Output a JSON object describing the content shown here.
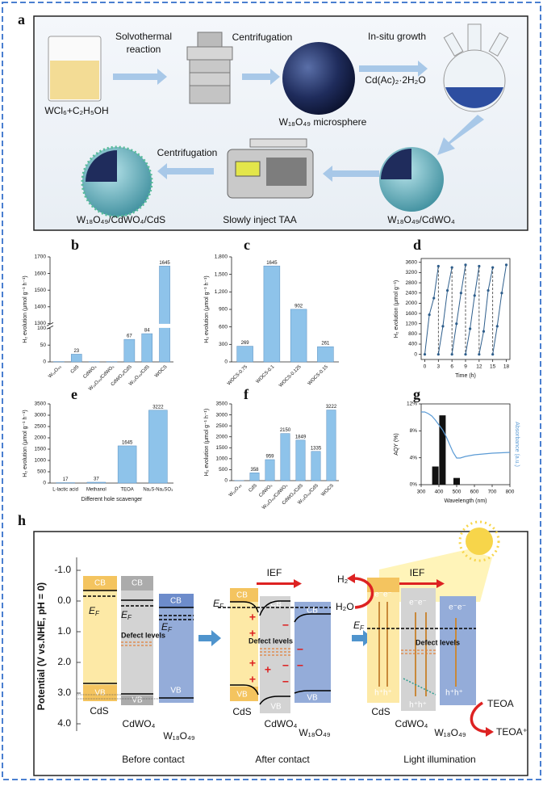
{
  "panel_a": {
    "label": "a",
    "solvothermal": [
      "Solvothermal",
      "reaction"
    ],
    "centrifugation_1": "Centrifugation",
    "in_situ": "In-situ growth",
    "reagent": "Cd(Ac)₂·2H₂O",
    "precursor": "WCl₆+C₂H₅OH",
    "microsphere": "W₁₈O₄₉ microsphere",
    "centrifugation_2": "Centrifugation",
    "product": "W₁₈O₄₉/CdWO₄/CdS",
    "inject": "Slowly inject TAA",
    "intermediate": "W₁₈O₄₉/CdWO₄"
  },
  "chart_data": [
    {
      "panel": "b",
      "type": "bar",
      "ylabel": "H₂ evolution (μmol g⁻¹ h⁻¹)",
      "categories": [
        "W₁₈O₄₉",
        "CdS",
        "CdWO₄",
        "W₁₈O₄₉/CdWO₄",
        "CdWO₄/CdS",
        "W₁₈O₄₉/CdS",
        "WOCS"
      ],
      "values": [
        1,
        23,
        1,
        1,
        67,
        84,
        1645
      ],
      "value_labels": [
        null,
        "23",
        null,
        null,
        "67",
        "84",
        "1645"
      ],
      "color": "#8ec3ea",
      "ylim": [
        0,
        1700
      ],
      "axis_break": [
        100,
        1300
      ],
      "yticks": [
        0,
        50,
        100,
        1300,
        1400,
        1500,
        1600,
        1700
      ]
    },
    {
      "panel": "c",
      "type": "bar",
      "ylabel": "H₂ evolution (μmol g⁻¹ h⁻¹)",
      "categories": [
        "WOCS-0.75",
        "WOCS-0.1",
        "WOCS-0.125",
        "WOCS-0.15"
      ],
      "values": [
        269,
        1645,
        902,
        261
      ],
      "color": "#8ec3ea",
      "ylim": [
        0,
        1800
      ],
      "yticks": [
        0,
        300,
        600,
        900,
        {
          "value": 1200,
          "label": "1,200"
        },
        {
          "value": 1500,
          "label": "1,500"
        },
        {
          "value": 1800,
          "label": "1,800"
        }
      ]
    },
    {
      "panel": "d",
      "type": "line",
      "ylabel": "H₂ evolution (μmol g⁻¹)",
      "xlabel": "Time (h)",
      "color": "#2e5e8c",
      "x": [
        0,
        1,
        2,
        3,
        3,
        4,
        5,
        6,
        6,
        7,
        8,
        9,
        9,
        10,
        11,
        12,
        12,
        13,
        14,
        15,
        15,
        16,
        17,
        18
      ],
      "values": [
        0,
        1550,
        2200,
        3450,
        0,
        1100,
        2500,
        3400,
        0,
        1200,
        2400,
        3500,
        0,
        1000,
        2300,
        3450,
        0,
        900,
        2500,
        3400,
        0,
        1100,
        2400,
        3500
      ],
      "xlim": [
        -0.8,
        18.8
      ],
      "xticks": [
        0,
        3,
        6,
        9,
        12,
        15,
        18
      ],
      "ylim": [
        -200,
        3750
      ],
      "yticks": [
        0,
        400,
        800,
        1200,
        1600,
        2000,
        2400,
        2800,
        3200,
        3600
      ]
    },
    {
      "panel": "e",
      "type": "bar",
      "ylabel": "H₂ evolution (μmol g⁻¹ h⁻¹)",
      "xlabel": "Different hole scavenger",
      "categories": [
        "L-lactic acid",
        "Methanol",
        "TEOA",
        "Na₂S-Na₂SO₃"
      ],
      "values": [
        17,
        37,
        1645,
        3222
      ],
      "color": "#8ec3ea",
      "ylim": [
        0,
        3500
      ],
      "yticks": [
        0,
        500,
        1000,
        1500,
        2000,
        2500,
        3000,
        3500
      ]
    },
    {
      "panel": "f",
      "type": "bar",
      "ylabel": "H₂ evolution (μmol g⁻¹ h⁻¹)",
      "categories": [
        "W₁₈O₄₉",
        "CdS",
        "CdWO₄",
        "W₁₈O₄₉/CdWO₄",
        "CdWO₄/CdS",
        "W₁₈O₄₉/CdS",
        "WOCS"
      ],
      "values": [
        8,
        358,
        959,
        2150,
        1849,
        1335,
        3222
      ],
      "value_labels": [
        null,
        "358",
        "959",
        "2150",
        "1849",
        "1335",
        "3222"
      ],
      "color": "#8ec3ea",
      "ylim": [
        0,
        3500
      ],
      "yticks": [
        0,
        500,
        1000,
        1500,
        2000,
        2500,
        3000,
        3500
      ]
    },
    {
      "panel": "g",
      "type": "combo",
      "ylabel": "AQY (%)",
      "y2label": "Absorbance (a.u.)",
      "xlabel": "Wavelength (nm)",
      "x": [
        380,
        420,
        500
      ],
      "values": [
        2.7,
        10.3,
        1.0
      ],
      "color": "#111111",
      "xlim": [
        300,
        800
      ],
      "xticks": [
        300,
        400,
        500,
        600,
        700,
        800
      ],
      "ylim": [
        0,
        12
      ],
      "yticks": [
        {
          "value": 0,
          "label": "0%"
        },
        {
          "value": 4,
          "label": "4%"
        },
        {
          "value": 8,
          "label": "8%"
        },
        {
          "value": 12,
          "label": "12%"
        }
      ],
      "y2lim": [
        0,
        1
      ],
      "series": [
        {
          "axis": "y2",
          "color": "#5b9bd5",
          "x": [
            300,
            320,
            340,
            360,
            380,
            400,
            420,
            440,
            460,
            480,
            500,
            520,
            550,
            600,
            650,
            700,
            750,
            800
          ],
          "values": [
            0.9,
            0.9,
            0.88,
            0.85,
            0.8,
            0.74,
            0.68,
            0.6,
            0.5,
            0.4,
            0.33,
            0.33,
            0.35,
            0.37,
            0.38,
            0.39,
            0.395,
            0.4
          ]
        }
      ]
    }
  ],
  "panel_h": {
    "label": "h",
    "axis_title": "Potential (V vs.NHE, pH = 0)",
    "axis_ticks": [
      "-1.0",
      "0.0",
      "1.0",
      "2.0",
      "3.0",
      "4.0"
    ],
    "cb": "CB",
    "vb": "VB",
    "ef": [
      "E",
      "F"
    ],
    "defect": "Defect levels",
    "materials": [
      "CdS",
      "CdWO₄",
      "W₁₈O₄₉"
    ],
    "stages": [
      "Before contact",
      "After contact",
      "Light illumination"
    ],
    "ief": "IEF",
    "h2": "H₂",
    "h2o": "H₂O",
    "electrons": "e⁻e⁻",
    "holes": "h⁺h⁺",
    "teoa": "TEOA",
    "teoa_plus": "TEOA⁺",
    "plus": "+",
    "minus": "−"
  }
}
